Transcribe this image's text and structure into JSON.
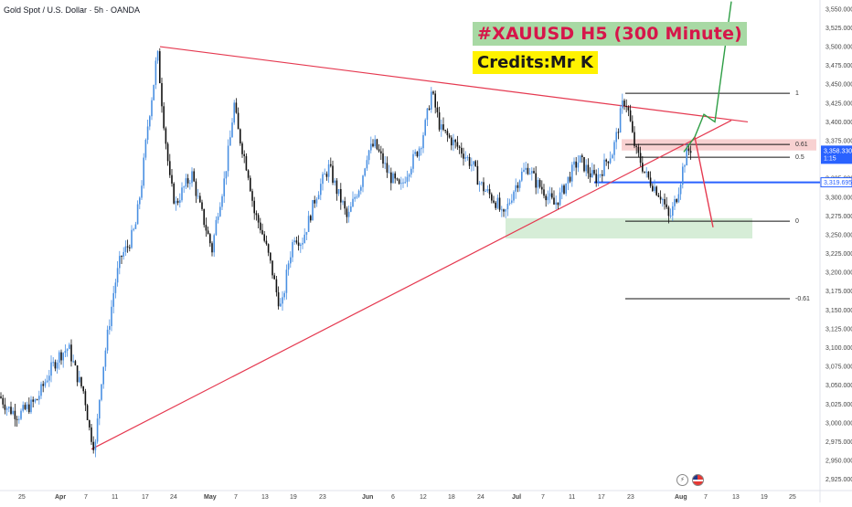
{
  "header": {
    "symbol_text": "Gold Spot / U.S. Dollar · 5h · OANDA"
  },
  "banners": {
    "title": "#XAUUSD  H5 (300 Minute)",
    "credit": "Credits:Mr K"
  },
  "icons": {
    "lightning": "lightning-icon",
    "flag": "us-flag-icon"
  },
  "chart_data": {
    "type": "candlestick",
    "symbol": "Gold Spot / U.S. Dollar",
    "timeframe": "5h",
    "source": "OANDA",
    "y_axis": {
      "ylim": [
        2910,
        3562
      ],
      "ticks": [
        2925,
        2950,
        2975,
        3000,
        3025,
        3050,
        3075,
        3100,
        3125,
        3150,
        3175,
        3200,
        3225,
        3250,
        3275,
        3300,
        3325,
        3350,
        3375,
        3400,
        3425,
        3450,
        3475,
        3500,
        3525,
        3550
      ],
      "tick_labels": [
        "2,925.000",
        "2,950.000",
        "2,975.000",
        "3,000.000",
        "3,025.000",
        "3,050.000",
        "3,075.000",
        "3,100.000",
        "3,125.000",
        "3,150.000",
        "3,175.000",
        "3,200.000",
        "3,225.000",
        "3,250.000",
        "3,275.000",
        "3,300.000",
        "3,325.000",
        "3,350.000",
        "3,375.000",
        "3,400.000",
        "3,425.000",
        "3,450.000",
        "3,475.000",
        "3,500.000",
        "3,525.000",
        "3,550.000"
      ]
    },
    "x_axis": {
      "labels": [
        "25",
        "Apr",
        "7",
        "11",
        "17",
        "24",
        "May",
        "7",
        "13",
        "19",
        "23",
        "Jun",
        "6",
        "12",
        "18",
        "24",
        "Jul",
        "7",
        "11",
        "17",
        "23",
        "Aug",
        "7",
        "13",
        "19",
        "25"
      ],
      "bold_labels": [
        "Apr",
        "May",
        "Jun",
        "Jul",
        "Aug"
      ]
    },
    "price_path": [
      [
        0,
        3035
      ],
      [
        8,
        3020
      ],
      [
        20,
        3010
      ],
      [
        40,
        3030
      ],
      [
        55,
        3070
      ],
      [
        65,
        3090
      ],
      [
        75,
        3100
      ],
      [
        85,
        3060
      ],
      [
        92,
        3040
      ],
      [
        98,
        2990
      ],
      [
        104,
        2965
      ],
      [
        110,
        3050
      ],
      [
        118,
        3120
      ],
      [
        125,
        3180
      ],
      [
        132,
        3220
      ],
      [
        140,
        3235
      ],
      [
        148,
        3260
      ],
      [
        155,
        3320
      ],
      [
        162,
        3400
      ],
      [
        168,
        3450
      ],
      [
        172,
        3495
      ],
      [
        176,
        3440
      ],
      [
        180,
        3390
      ],
      [
        186,
        3320
      ],
      [
        192,
        3290
      ],
      [
        200,
        3310
      ],
      [
        210,
        3330
      ],
      [
        218,
        3290
      ],
      [
        225,
        3260
      ],
      [
        232,
        3230
      ],
      [
        238,
        3280
      ],
      [
        245,
        3320
      ],
      [
        252,
        3380
      ],
      [
        256,
        3425
      ],
      [
        260,
        3390
      ],
      [
        266,
        3360
      ],
      [
        272,
        3330
      ],
      [
        278,
        3280
      ],
      [
        285,
        3260
      ],
      [
        292,
        3230
      ],
      [
        298,
        3200
      ],
      [
        303,
        3170
      ],
      [
        308,
        3150
      ],
      [
        315,
        3210
      ],
      [
        322,
        3250
      ],
      [
        330,
        3240
      ],
      [
        338,
        3270
      ],
      [
        345,
        3300
      ],
      [
        352,
        3320
      ],
      [
        360,
        3340
      ],
      [
        368,
        3310
      ],
      [
        375,
        3290
      ],
      [
        380,
        3270
      ],
      [
        388,
        3300
      ],
      [
        395,
        3320
      ],
      [
        402,
        3360
      ],
      [
        410,
        3370
      ],
      [
        418,
        3350
      ],
      [
        425,
        3330
      ],
      [
        432,
        3320
      ],
      [
        438,
        3310
      ],
      [
        444,
        3330
      ],
      [
        452,
        3350
      ],
      [
        460,
        3370
      ],
      [
        466,
        3400
      ],
      [
        472,
        3440
      ],
      [
        476,
        3420
      ],
      [
        482,
        3390
      ],
      [
        490,
        3380
      ],
      [
        498,
        3370
      ],
      [
        506,
        3360
      ],
      [
        512,
        3350
      ],
      [
        518,
        3340
      ],
      [
        524,
        3320
      ],
      [
        530,
        3310
      ],
      [
        538,
        3300
      ],
      [
        545,
        3290
      ],
      [
        550,
        3270
      ],
      [
        556,
        3290
      ],
      [
        562,
        3310
      ],
      [
        570,
        3330
      ],
      [
        578,
        3340
      ],
      [
        586,
        3320
      ],
      [
        594,
        3310
      ],
      [
        600,
        3300
      ],
      [
        606,
        3290
      ],
      [
        612,
        3300
      ],
      [
        620,
        3320
      ],
      [
        628,
        3340
      ],
      [
        634,
        3350
      ],
      [
        640,
        3340
      ],
      [
        646,
        3330
      ],
      [
        652,
        3325
      ],
      [
        658,
        3335
      ],
      [
        664,
        3350
      ],
      [
        670,
        3360
      ],
      [
        676,
        3390
      ],
      [
        680,
        3420
      ],
      [
        684,
        3430
      ],
      [
        688,
        3410
      ],
      [
        692,
        3380
      ],
      [
        696,
        3360
      ],
      [
        700,
        3350
      ],
      [
        706,
        3330
      ],
      [
        712,
        3320
      ],
      [
        718,
        3310
      ],
      [
        724,
        3300
      ],
      [
        728,
        3285
      ],
      [
        732,
        3270
      ],
      [
        736,
        3285
      ],
      [
        740,
        3300
      ],
      [
        744,
        3320
      ],
      [
        748,
        3345
      ],
      [
        752,
        3360
      ],
      [
        756,
        3365
      ]
    ],
    "current_price_label": "3,358.330",
    "countdown_label": "1:15",
    "horizontal_line_label": "3,319.695",
    "horizontal_line_value": 3319.695,
    "fibonacci": {
      "levels": [
        {
          "label": "1",
          "value": 3438
        },
        {
          "label": "0.61",
          "value": 3370
        },
        {
          "label": "0.5",
          "value": 3353
        },
        {
          "label": "0",
          "value": 3268
        },
        {
          "label": "-0.61",
          "value": 3165
        }
      ]
    },
    "triangle": {
      "upper_line": [
        [
          175,
          3500
        ],
        [
          818,
          3400
        ]
      ],
      "lower_line": [
        [
          100,
          2965
        ],
        [
          800,
          3402
        ]
      ]
    },
    "support_zone": [
      3245,
      3272
    ],
    "resistance_zone": [
      3362,
      3377
    ],
    "projections": {
      "bullish": [
        [
          748,
          3360
        ],
        [
          760,
          3380
        ],
        [
          770,
          3410
        ],
        [
          782,
          3400
        ],
        [
          800,
          3560
        ]
      ],
      "bearish": [
        [
          760,
          3380
        ],
        [
          780,
          3260
        ]
      ]
    }
  }
}
